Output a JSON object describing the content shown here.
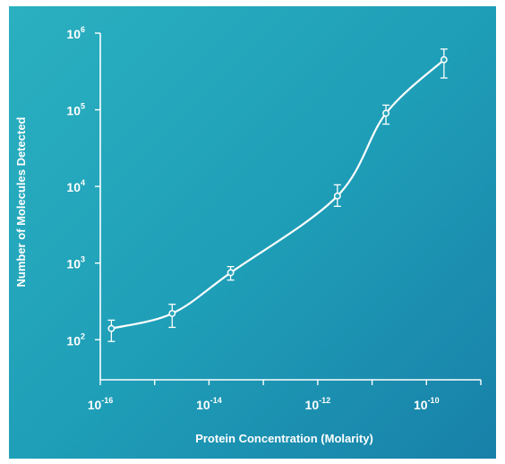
{
  "chart_data": {
    "type": "line",
    "xlabel": "Protein Concentration (Molarity)",
    "ylabel": "Number of Molecules Detected",
    "x_scale": "log",
    "y_scale": "log",
    "xlim": [
      1e-16,
      1e-09
    ],
    "ylim": [
      30,
      1000000
    ],
    "x_ticks": [
      {
        "base": "10",
        "exp": "-16",
        "value": 1e-16
      },
      {
        "base": "10",
        "exp": "-14",
        "value": 1e-14
      },
      {
        "base": "10",
        "exp": "-12",
        "value": 1e-12
      },
      {
        "base": "10",
        "exp": "-10",
        "value": 1e-10
      }
    ],
    "y_ticks": [
      {
        "base": "10",
        "exp": "2",
        "value": 100
      },
      {
        "base": "10",
        "exp": "3",
        "value": 1000
      },
      {
        "base": "10",
        "exp": "4",
        "value": 10000
      },
      {
        "base": "10",
        "exp": "5",
        "value": 100000
      },
      {
        "base": "10",
        "exp": "6",
        "value": 1000000
      }
    ],
    "series": [
      {
        "points": [
          {
            "x": 1.6e-16,
            "y": 140,
            "err_low": 95,
            "err_high": 180
          },
          {
            "x": 2.1e-15,
            "y": 220,
            "err_low": 145,
            "err_high": 290
          },
          {
            "x": 2.5e-14,
            "y": 750,
            "err_low": 600,
            "err_high": 900
          },
          {
            "x": 2.3e-12,
            "y": 7500,
            "err_low": 5500,
            "err_high": 10500
          },
          {
            "x": 1.8e-11,
            "y": 90000,
            "err_low": 65000,
            "err_high": 115000
          },
          {
            "x": 2.1e-10,
            "y": 450000,
            "err_low": 260000,
            "err_high": 620000
          }
        ]
      }
    ],
    "grid": false,
    "colors": {
      "background_start": "#2ab0c0",
      "background_end": "#1880a8",
      "marks": "#ffffff"
    }
  }
}
